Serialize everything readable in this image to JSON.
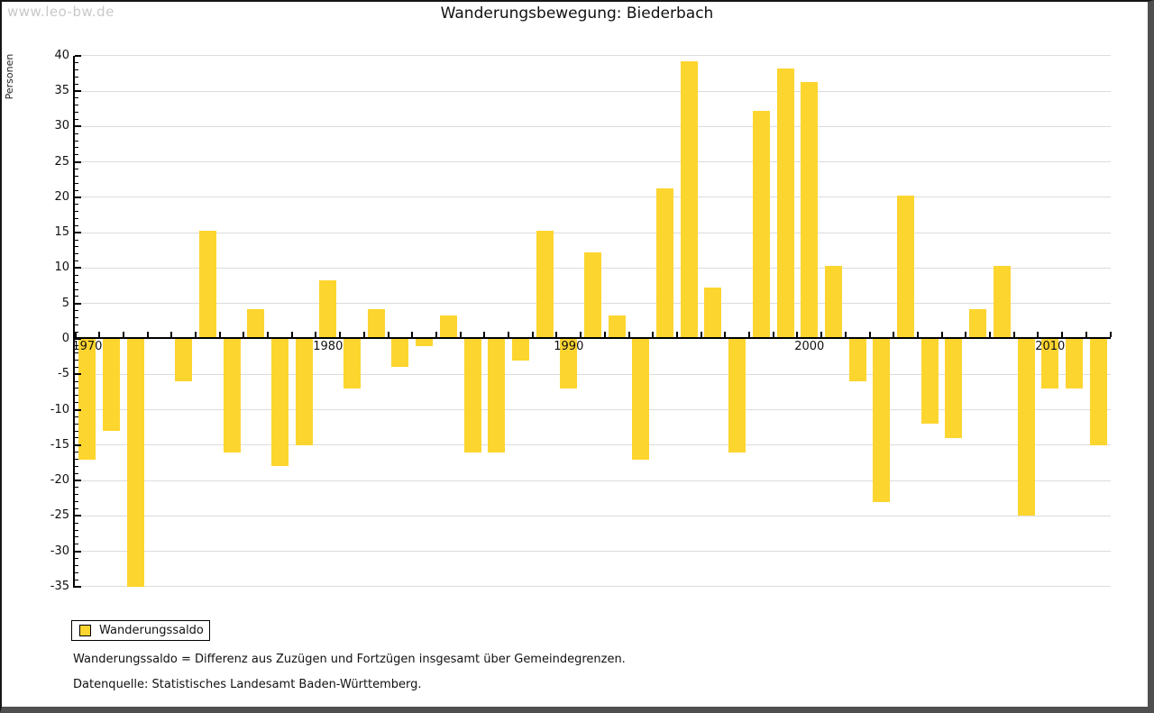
{
  "watermark": "www.leo-bw.de",
  "legend": {
    "label": "Wanderungssaldo"
  },
  "footnotes": {
    "definition": "Wanderungssaldo = Differenz aus Zuzügen und Fortzügen insgesamt über Gemeindegrenzen.",
    "source": "Datenquelle: Statistisches Landesamt Baden-Württemberg."
  },
  "colors": {
    "bar": "#FDD52F",
    "gridline": "#DCDCDC",
    "axis": "#000000",
    "watermark": "#C9C9C9",
    "frame_shadow": "#4F4F4F"
  },
  "chart_data": {
    "type": "bar",
    "title": "Wanderungsbewegung: Biederbach",
    "ylabel": "Personen",
    "xlabel": "",
    "series_name": "Wanderungssaldo",
    "years": [
      1970,
      1971,
      1972,
      1973,
      1974,
      1975,
      1976,
      1977,
      1978,
      1979,
      1980,
      1981,
      1982,
      1983,
      1984,
      1985,
      1986,
      1987,
      1988,
      1989,
      1990,
      1991,
      1992,
      1993,
      1994,
      1995,
      1996,
      1997,
      1998,
      1999,
      2000,
      2001,
      2002,
      2003,
      2004,
      2005,
      2006,
      2007,
      2008,
      2009,
      2010,
      2011,
      2012
    ],
    "values": [
      -17,
      -13,
      -35,
      0,
      -6,
      15,
      -16,
      4,
      -18,
      -15,
      8,
      -7,
      4,
      -4,
      -1,
      3,
      -16,
      -16,
      -3,
      15,
      -7,
      12,
      3,
      -17,
      21,
      39,
      7,
      -16,
      32,
      38,
      36,
      10,
      -6,
      -23,
      20,
      -12,
      -14,
      4,
      10,
      -25,
      -7,
      -7,
      -15
    ],
    "ylim": [
      -35,
      40
    ],
    "ytick_major_step": 5,
    "ytick_minor_step": 1,
    "yticks": [
      40,
      35,
      30,
      25,
      20,
      15,
      10,
      5,
      0,
      -5,
      -10,
      -15,
      -20,
      -25,
      -30,
      -35
    ],
    "xticks": [
      1970,
      1980,
      1990,
      2000,
      2010
    ],
    "grid": "horizontal-major",
    "legend_position": "bottom-left"
  }
}
